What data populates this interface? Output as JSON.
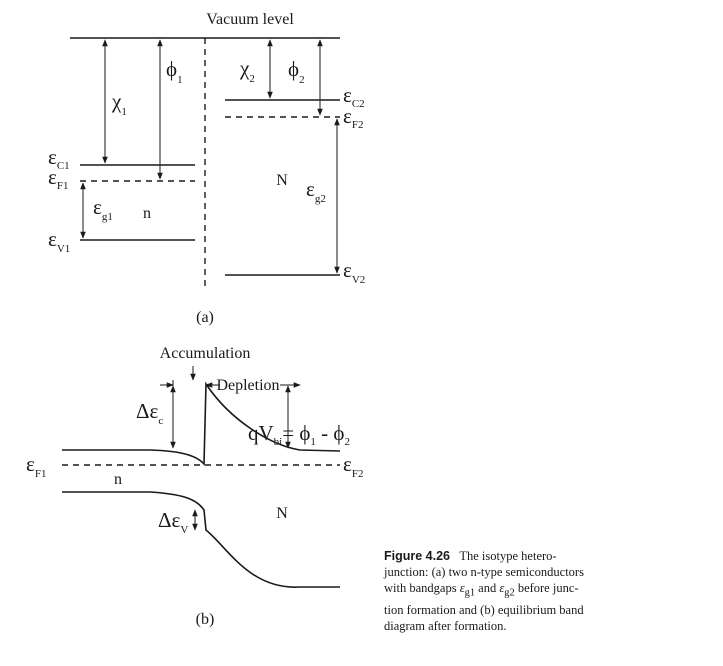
{
  "panel_a": {
    "vacuum_label": "Vacuum level",
    "chi1": "χ",
    "chi1_sub": "1",
    "phi1": "ϕ",
    "phi1_sub": "1",
    "chi2": "χ",
    "chi2_sub": "2",
    "phi2": "ϕ",
    "phi2_sub": "2",
    "ec1": "ε",
    "ec1_sub": "C1",
    "ef1": "ε",
    "ef1_sub": "F1",
    "eg1": "ε",
    "eg1_sub": "g1",
    "ev1": "ε",
    "ev1_sub": "V1",
    "ec2": "ε",
    "ec2_sub": "C2",
    "ef2": "ε",
    "ef2_sub": "F2",
    "eg2": "ε",
    "eg2_sub": "g2",
    "ev2": "ε",
    "ev2_sub": "V2",
    "n_label": "n",
    "N_label": "N",
    "panel_label": "(a)"
  },
  "panel_b": {
    "accumulation": "Accumulation",
    "depletion": "Depletion",
    "delta_ec": "Δε",
    "delta_ec_sub": "c",
    "qvbi": "qV",
    "qvbi_sub": "bi",
    "qvbi_rhs_phi1": "= ϕ",
    "qvbi_rhs_phi1_sub": "1",
    "qvbi_rhs_phi2": " - ϕ",
    "qvbi_rhs_phi2_sub": "2",
    "ef1": "ε",
    "ef1_sub": "F1",
    "ef2": "ε",
    "ef2_sub": "F2",
    "n_label": "n",
    "N_label": "N",
    "delta_ev": "Δε",
    "delta_ev_sub": "V",
    "panel_label": "(b)"
  },
  "caption": {
    "heading": "Figure 4.26",
    "line1": "The isotype hetero-",
    "line2": "junction: (a) two n-type semiconductors",
    "line3_a": "with bandgaps ",
    "line3_g1": "ε",
    "line3_g1_sub": "g1",
    "line3_b": " and ",
    "line3_g2": "ε",
    "line3_g2_sub": "g2",
    "line3_c": " before junc-",
    "line4": "tion formation and (b) equilibrium band",
    "line5": "diagram after formation."
  }
}
